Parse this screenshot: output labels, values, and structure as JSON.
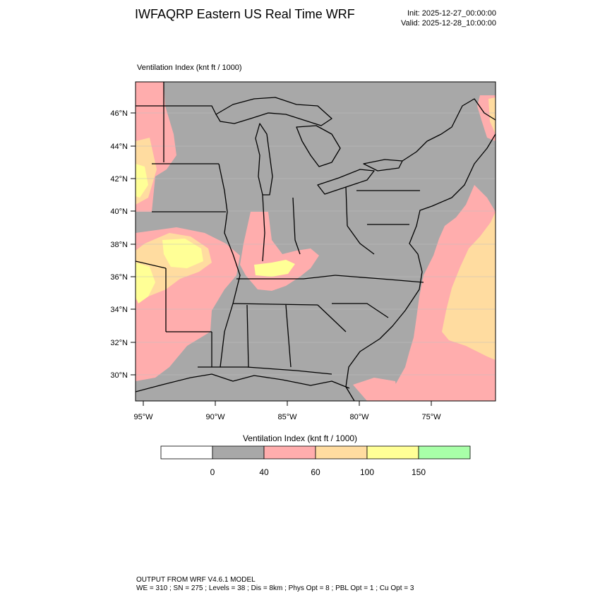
{
  "header": {
    "title": "IWFAQRP Eastern US Real Time WRF",
    "init": "Init: 2025-12-27_00:00:00",
    "valid": "Valid: 2025-12-28_10:00:00"
  },
  "map": {
    "field_label": "Ventilation Index   (knt ft / 1000)",
    "lat_labels": [
      "46°N",
      "44°N",
      "42°N",
      "40°N",
      "38°N",
      "36°N",
      "34°N",
      "32°N",
      "30°N"
    ],
    "lon_labels": [
      "95°W",
      "90°W",
      "85°W",
      "80°W",
      "75°W"
    ],
    "colors": {
      "land_base": "#a8a8a8",
      "class_40_60": "#ffadad",
      "class_60_100": "#ffdca0",
      "class_100_150": "#ffff96",
      "class_150_plus": "#a8ffa8",
      "boundary": "#000000"
    }
  },
  "legend": {
    "title": "Ventilation Index  (knt ft / 1000)",
    "colors": [
      "#ffffff",
      "#a8a8a8",
      "#ffadad",
      "#ffdca0",
      "#ffff96",
      "#a8ffa8"
    ],
    "tick_labels": [
      "0",
      "40",
      "60",
      "100",
      "150"
    ]
  },
  "footer": {
    "line1": "OUTPUT FROM WRF V4.6.1 MODEL",
    "line2": "WE = 310 ; SN = 275 ; Levels = 38 ; Dis = 8km ; Phys Opt = 8 ; PBL Opt = 1 ; Cu Opt = 3"
  }
}
